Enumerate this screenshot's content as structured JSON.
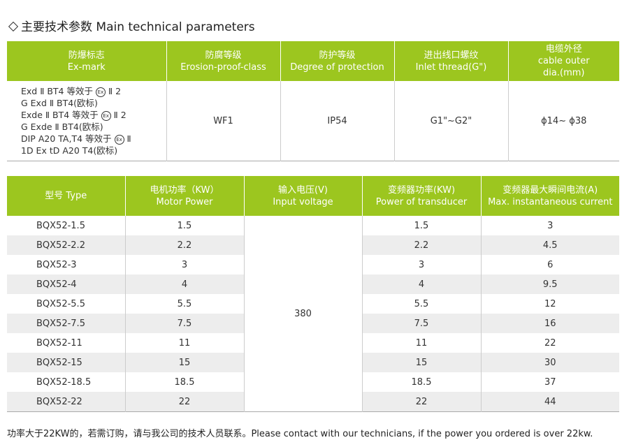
{
  "heading": "主要技术参数 Main technical parameters",
  "params_table": {
    "headers": [
      {
        "cn": "防爆标志",
        "en": "Ex-mark"
      },
      {
        "cn": "防腐等级",
        "en": "Erosion-proof-class"
      },
      {
        "cn": "防护等级",
        "en": "Degree of protection"
      },
      {
        "cn": "进出线口螺纹",
        "en": "Inlet thread(G\")"
      },
      {
        "cn": "电缆外径",
        "en": "cable outer",
        "en2": "dia.(mm)"
      }
    ],
    "exmark_lines": [
      {
        "before": "Exd Ⅱ BT4 等效于",
        "symbol": "Ex",
        "after": "Ⅱ 2"
      },
      {
        "before": "G Exd Ⅱ BT4(欧标)",
        "symbol": "",
        "after": ""
      },
      {
        "before": "Exde Ⅱ BT4 等效于",
        "symbol": "Ex",
        "after": "Ⅱ 2"
      },
      {
        "before": "G Exde Ⅱ BT4(欧标)",
        "symbol": "",
        "after": ""
      },
      {
        "before": "DIP A20 TA,T4 等效于",
        "symbol": "Ex",
        "after": "Ⅱ"
      },
      {
        "before": "1D Ex tD A20 T4(欧标)",
        "symbol": "",
        "after": ""
      }
    ],
    "erosion_class": "WF1",
    "protection": "IP54",
    "inlet_thread": "G1\"~G2\"",
    "cable_dia": "ϕ14~ ϕ38"
  },
  "power_table": {
    "headers": [
      {
        "cn": "型号  Type",
        "en": ""
      },
      {
        "cn": "电机功率（KW）",
        "en": "Motor Power"
      },
      {
        "cn": "输入电压(V)",
        "en": "Input voltage"
      },
      {
        "cn": "变频器功率(KW)",
        "en": "Power of transducer"
      },
      {
        "cn": "变频器最大瞬间电流(A)",
        "en": "Max. instantaneous current"
      }
    ],
    "input_voltage": "380",
    "rows": [
      {
        "model": "BQX52-1.5",
        "motor": "1.5",
        "transducer": "1.5",
        "current": "3"
      },
      {
        "model": "BQX52-2.2",
        "motor": "2.2",
        "transducer": "2.2",
        "current": "4.5"
      },
      {
        "model": "BQX52-3",
        "motor": "3",
        "transducer": "3",
        "current": "6"
      },
      {
        "model": "BQX52-4",
        "motor": "4",
        "transducer": "4",
        "current": "9.5"
      },
      {
        "model": "BQX52-5.5",
        "motor": "5.5",
        "transducer": "5.5",
        "current": "12"
      },
      {
        "model": "BQX52-7.5",
        "motor": "7.5",
        "transducer": "7.5",
        "current": "16"
      },
      {
        "model": "BQX52-11",
        "motor": "11",
        "transducer": "11",
        "current": "22"
      },
      {
        "model": "BQX52-15",
        "motor": "15",
        "transducer": "15",
        "current": "30"
      },
      {
        "model": "BQX52-18.5",
        "motor": "18.5",
        "transducer": "18.5",
        "current": "37"
      },
      {
        "model": "BQX52-22",
        "motor": "22",
        "transducer": "22",
        "current": "44"
      }
    ]
  },
  "footnote": "功率大于22KW的，若需订购，请与我公司的技术人员联系。Please contact with our technicians, if the power you ordered is over 22kw.",
  "colors": {
    "header_bg": "#9cc61f",
    "stripe_bg": "#ededed"
  }
}
